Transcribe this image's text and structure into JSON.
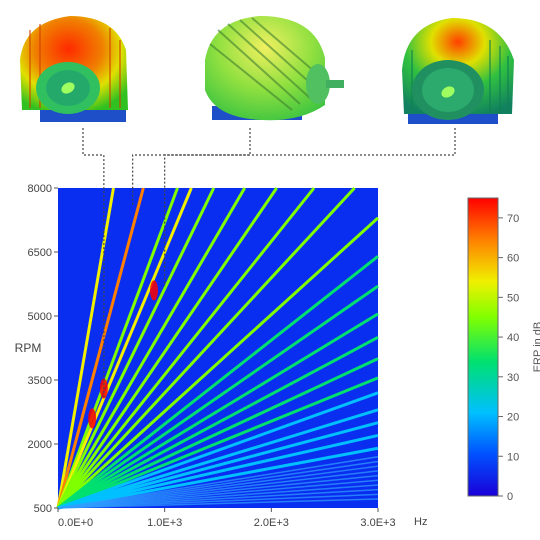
{
  "chart_data": {
    "type": "heatmap",
    "title": "",
    "xlabel": "",
    "ylabel": "RPM",
    "x_unit": "Hz",
    "xlim": [
      0,
      3000
    ],
    "ylim": [
      500,
      8000
    ],
    "x_ticks": [
      0,
      1000,
      2000,
      3000
    ],
    "x_tick_labels": [
      "0.0E+0",
      "1.0E+3",
      "2.0E+3",
      "3.0E+3"
    ],
    "y_ticks": [
      500,
      2000,
      3500,
      5000,
      6500,
      8000
    ],
    "y_tick_labels": [
      "500",
      "2000",
      "3500",
      "5000",
      "6500",
      "8000"
    ],
    "background_level_dB": 0,
    "order_lines": {
      "description": "Order lines radiating from the origin; each line has a frequency at 8000 RPM (in Hz) and an ERP level in dB",
      "freq_at_8000rpm": [
        520,
        800,
        1120,
        1250,
        1460,
        1750,
        2050,
        2400,
        2780,
        3000,
        3000,
        3000,
        3000,
        3000,
        3000,
        3000,
        3000,
        3000,
        3000,
        3000,
        3000
      ],
      "rpm_at_3000hz": [
        null,
        null,
        null,
        null,
        null,
        null,
        null,
        null,
        null,
        7300,
        6400,
        5700,
        5050,
        4500,
        4000,
        3550,
        3200,
        2800,
        2500,
        2200,
        1900
      ],
      "erp_dB": [
        52,
        62,
        40,
        52,
        42,
        40,
        38,
        36,
        34,
        36,
        32,
        30,
        28,
        26,
        24,
        22,
        20,
        18,
        16,
        14,
        12
      ]
    },
    "hot_spots": [
      {
        "freq_hz": 430,
        "rpm": 3300,
        "erp_dB": 70
      },
      {
        "freq_hz": 900,
        "rpm": 5600,
        "erp_dB": 68
      },
      {
        "freq_hz": 320,
        "rpm": 2600,
        "erp_dB": 66
      }
    ],
    "mode_shape_markers": [
      {
        "freq_hz": 430,
        "rpm": 3100,
        "model": "motor-left"
      },
      {
        "freq_hz": 700,
        "rpm": 7600,
        "model": "motor-center"
      },
      {
        "freq_hz": 1000,
        "rpm": 5700,
        "model": "motor-right"
      }
    ],
    "colorbar": {
      "label": "ERP in dB",
      "range": [
        0,
        75
      ],
      "ticks": [
        "0",
        "10",
        "20",
        "30",
        "40",
        "50",
        "60",
        "70"
      ]
    }
  },
  "colors": {
    "background": "#0a2ef0",
    "scale": [
      "#1a00d8",
      "#0050ff",
      "#00c0ff",
      "#00e070",
      "#80ff00",
      "#f0f000",
      "#ff8000",
      "#ff0000"
    ]
  },
  "images": [
    {
      "name": "motor-left-model",
      "icon": "motor-icon"
    },
    {
      "name": "motor-center-model",
      "icon": "motor-icon"
    },
    {
      "name": "motor-right-model",
      "icon": "motor-icon"
    }
  ]
}
